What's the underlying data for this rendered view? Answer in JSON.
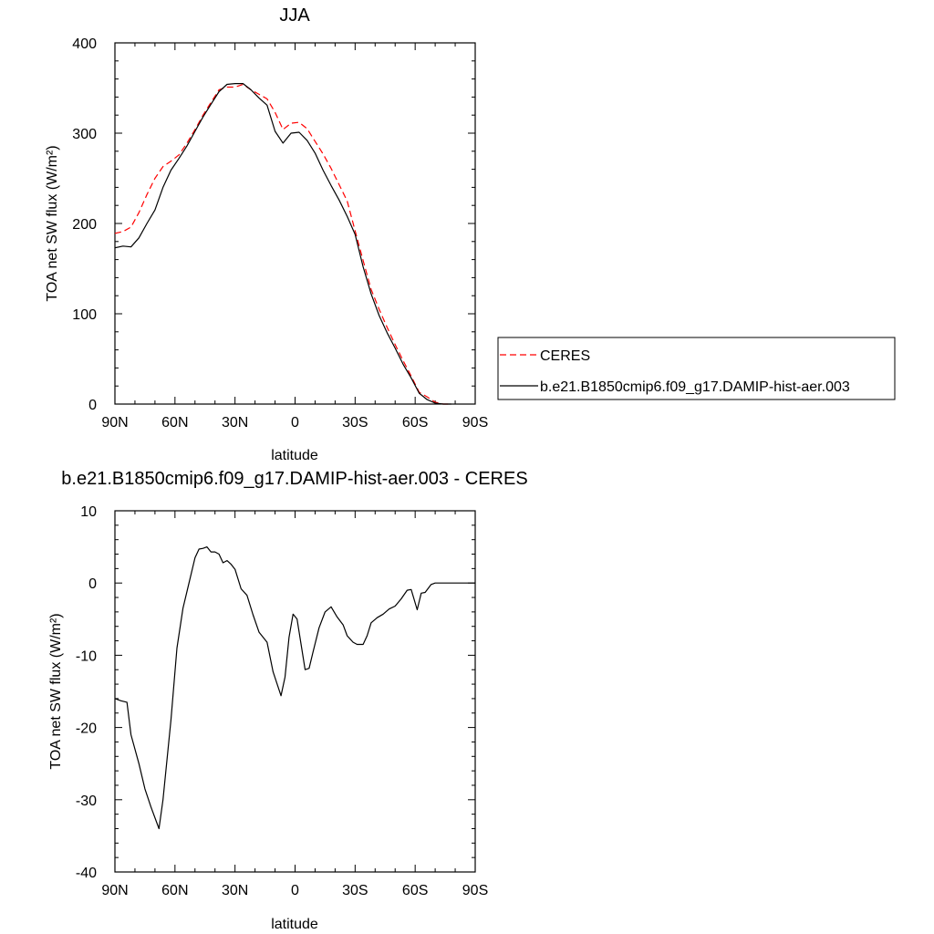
{
  "chart_data": [
    {
      "type": "line",
      "title": "JJA",
      "xlabel": "latitude",
      "ylabel": "TOA net SW flux (W/m²)",
      "xlim": [
        90,
        -90
      ],
      "ylim": [
        0,
        400
      ],
      "x_ticks": [
        90,
        60,
        30,
        0,
        -30,
        -60,
        -90
      ],
      "x_tick_labels": [
        "90N",
        "60N",
        "30N",
        "0",
        "30S",
        "60S",
        "90S"
      ],
      "y_ticks": [
        0,
        100,
        200,
        300,
        400
      ],
      "y_tick_labels": [
        "0",
        "100",
        "200",
        "300",
        "400"
      ],
      "legend_position": "right",
      "series": [
        {
          "name": "CERES",
          "color": "#ff0000",
          "style": "dashed",
          "x": [
            90,
            86,
            82,
            78,
            74,
            70,
            66,
            62,
            58,
            54,
            50,
            46,
            42,
            38,
            34,
            30,
            26,
            22,
            18,
            14,
            10,
            6,
            2,
            -2,
            -6,
            -10,
            -14,
            -18,
            -22,
            -26,
            -30,
            -34,
            -38,
            -42,
            -46,
            -50,
            -54,
            -58,
            -62,
            -66,
            -70,
            -74,
            -78
          ],
          "y": [
            189,
            191,
            196,
            212,
            232,
            250,
            263,
            269,
            276,
            289,
            304,
            320,
            334,
            348,
            351,
            351,
            354,
            348,
            343,
            338,
            323,
            304,
            311,
            312,
            305,
            291,
            277,
            261,
            243,
            225,
            192,
            159,
            127,
            105,
            85,
            66,
            48,
            31,
            13,
            8,
            2,
            0,
            0
          ]
        },
        {
          "name": "b.e21.B1850cmip6.f09_g17.DAMIP-hist-aer.003",
          "color": "#000000",
          "style": "solid",
          "x": [
            90,
            86,
            82,
            78,
            74,
            70,
            66,
            62,
            58,
            54,
            50,
            46,
            42,
            38,
            34,
            30,
            26,
            22,
            18,
            14,
            10,
            6,
            2,
            -2,
            -6,
            -10,
            -14,
            -18,
            -22,
            -26,
            -30,
            -34,
            -38,
            -42,
            -46,
            -50,
            -54,
            -58,
            -62,
            -66,
            -70,
            -74,
            -78
          ],
          "y": [
            173,
            175,
            174,
            184,
            200,
            215,
            240,
            259,
            272,
            286,
            302,
            318,
            332,
            346,
            354,
            355,
            355,
            348,
            339,
            331,
            302,
            289,
            300,
            301,
            292,
            278,
            259,
            242,
            226,
            208,
            188,
            152,
            122,
            98,
            79,
            62,
            44,
            29,
            12,
            5,
            1,
            0,
            0
          ]
        }
      ]
    },
    {
      "type": "line",
      "title": "b.e21.B1850cmip6.f09_g17.DAMIP-hist-aer.003 - CERES",
      "xlabel": "latitude",
      "ylabel": "TOA net SW flux (W/m²)",
      "xlim": [
        90,
        -90
      ],
      "ylim": [
        -40,
        10
      ],
      "x_ticks": [
        90,
        60,
        30,
        0,
        -30,
        -60,
        -90
      ],
      "x_tick_labels": [
        "90N",
        "60N",
        "30N",
        "0",
        "30S",
        "60S",
        "90S"
      ],
      "y_ticks": [
        -40,
        -30,
        -20,
        -10,
        0,
        10
      ],
      "y_tick_labels": [
        "-40",
        "-30",
        "-20",
        "-10",
        "0",
        "10"
      ],
      "series": [
        {
          "color": "#000000",
          "style": "solid",
          "x": [
            90,
            87,
            84,
            82,
            78,
            75,
            72,
            68,
            66,
            62,
            59,
            56,
            53,
            50,
            48,
            46,
            44,
            42,
            40,
            38,
            36,
            34,
            32,
            30,
            27,
            24,
            21,
            18,
            14,
            11,
            7,
            5,
            3,
            1,
            -1,
            -3,
            -5,
            -7,
            -9,
            -12,
            -15,
            -18,
            -21,
            -24,
            -26,
            -29,
            -31,
            -34,
            -36,
            -38,
            -41,
            -44,
            -47,
            -50,
            -53,
            -56,
            -58,
            -61,
            -63,
            -65,
            -68,
            -70,
            -73,
            -76,
            -79,
            -82,
            -86,
            -90
          ],
          "y": [
            -16,
            -16.3,
            -16.5,
            -21,
            -25,
            -28.5,
            -31,
            -34,
            -30,
            -19,
            -9,
            -3.5,
            0,
            3.5,
            4.7,
            4.8,
            5,
            4.3,
            4.3,
            4,
            2.8,
            3.1,
            2.6,
            1.9,
            -0.8,
            -1.7,
            -4.4,
            -6.8,
            -8.2,
            -12.3,
            -15.6,
            -13,
            -7.5,
            -4.3,
            -5,
            -8.5,
            -12,
            -11.8,
            -9.5,
            -6.2,
            -4,
            -3.3,
            -4.7,
            -5.8,
            -7.3,
            -8.2,
            -8.5,
            -8.5,
            -7.3,
            -5.5,
            -4.8,
            -4.3,
            -3.6,
            -3.2,
            -2.2,
            -1,
            -0.9,
            -3.7,
            -1.4,
            -1.3,
            -0.2,
            0,
            0,
            0,
            0,
            0,
            0,
            0
          ]
        }
      ]
    }
  ]
}
